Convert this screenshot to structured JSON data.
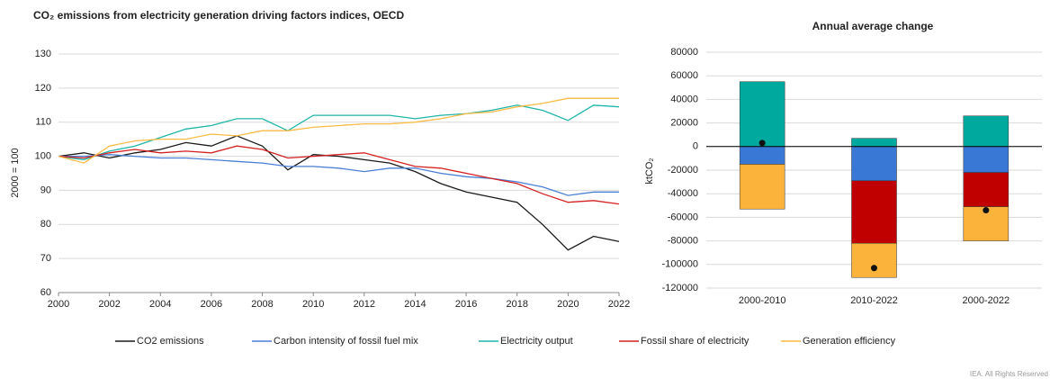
{
  "chart_data": [
    {
      "type": "line",
      "title": "CO₂ emissions from electricity generation driving factors indices, OECD",
      "y_label": "2000 = 100",
      "x": [
        2000,
        2001,
        2002,
        2003,
        2004,
        2005,
        2006,
        2007,
        2008,
        2009,
        2010,
        2011,
        2012,
        2013,
        2014,
        2015,
        2016,
        2017,
        2018,
        2019,
        2020,
        2021,
        2022
      ],
      "xlim": [
        2000,
        2022
      ],
      "xticks": [
        2000,
        2002,
        2004,
        2006,
        2008,
        2010,
        2012,
        2014,
        2016,
        2018,
        2020,
        2022
      ],
      "ylim": [
        60,
        130
      ],
      "yticks": [
        60,
        70,
        80,
        90,
        100,
        110,
        120,
        130
      ],
      "grid": true,
      "series": [
        {
          "name": "CO2 emissions",
          "color": "#1a1a1a",
          "values": [
            100,
            101,
            99.5,
            101,
            102,
            104,
            103,
            106,
            103,
            96,
            100.5,
            100,
            99,
            98,
            95.5,
            92,
            89.5,
            88,
            86.5,
            80,
            72.5,
            76.5,
            75
          ]
        },
        {
          "name": "Carbon intensity of fossil fuel mix",
          "color": "#4a7fd6",
          "values": [
            100,
            100,
            100.5,
            100,
            99.5,
            99.5,
            99,
            98.5,
            98,
            97,
            97,
            96.5,
            95.5,
            96.5,
            96.5,
            95,
            94,
            93.5,
            92.5,
            91,
            88.5,
            89.5,
            89.5
          ]
        },
        {
          "name": "Electricity output",
          "color": "#1fb5a8",
          "values": [
            100,
            99,
            101.5,
            103,
            105.5,
            108,
            109,
            111,
            111,
            107.5,
            112,
            112,
            112,
            112,
            111,
            112,
            112.5,
            113.5,
            115,
            113.5,
            110.5,
            115,
            114.5
          ]
        },
        {
          "name": "Fossil share of electricity",
          "color": "#d42020",
          "values": [
            100,
            99.5,
            101,
            102,
            101,
            101.5,
            101,
            103,
            102,
            99.5,
            100,
            100.5,
            101,
            99,
            97,
            96.5,
            95,
            93.5,
            92,
            89,
            86.5,
            87,
            86
          ]
        },
        {
          "name": "Generation efficiency",
          "color": "#fbbb45",
          "values": [
            100,
            98,
            103,
            104.5,
            105,
            105,
            106.5,
            106,
            107.5,
            107.5,
            108.5,
            109,
            109.5,
            109.5,
            110,
            111,
            112.5,
            113,
            114.5,
            115.5,
            117,
            117,
            117
          ]
        }
      ]
    },
    {
      "type": "stacked_bar",
      "title": "Annual average change",
      "y_label": "ktCO₂",
      "categories": [
        "2000-2010",
        "2010-2022",
        "2000-2022"
      ],
      "ylim": [
        -120000,
        80000
      ],
      "yticks": [
        -120000,
        -100000,
        -80000,
        -60000,
        -40000,
        -20000,
        0,
        20000,
        40000,
        60000,
        80000
      ],
      "grid": true,
      "series": [
        {
          "name": "CO2 emissions",
          "color": "#111111",
          "type": "scatter",
          "values": [
            3000,
            -103000,
            -54000
          ]
        },
        {
          "name": "Carbon intensity of fossil fuel mix",
          "color": "#3a78d6",
          "values": [
            -15000,
            -29000,
            -22000
          ]
        },
        {
          "name": "Electricity output",
          "color": "#00a99d",
          "values": [
            55000,
            7000,
            26000
          ]
        },
        {
          "name": "Fossil share of electricity",
          "color": "#c00000",
          "values": [
            0,
            -53000,
            -29000
          ]
        },
        {
          "name": "Generation efficiency",
          "color": "#fbb33c",
          "values": [
            -38000,
            -29000,
            -29000
          ]
        }
      ]
    }
  ],
  "footer": "IEA. All Rights Reserved"
}
